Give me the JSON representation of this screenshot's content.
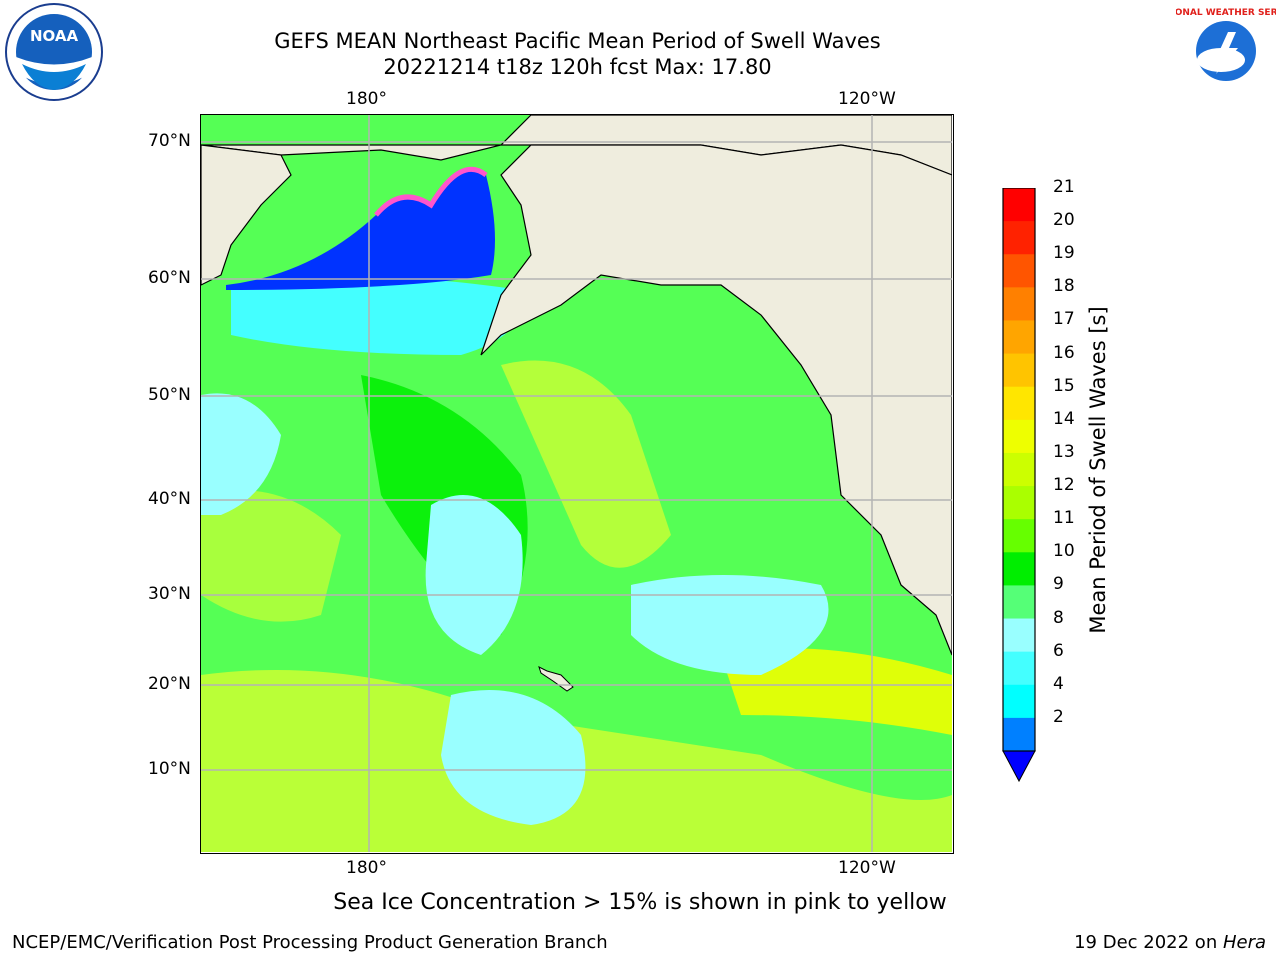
{
  "title_line1": "GEFS MEAN Northeast Pacific Mean Period of Swell Waves",
  "title_line2": "20221214 t18z 120h fcst   Max: 17.80",
  "logos": {
    "left": "NOAA",
    "right": "NATIONAL WEATHER SERVICE"
  },
  "axes": {
    "lon_top": [
      "180°",
      "120°W"
    ],
    "lon_bottom": [
      "180°",
      "120°W"
    ],
    "lat": [
      "70°N",
      "60°N",
      "50°N",
      "40°N",
      "30°N",
      "20°N",
      "10°N"
    ]
  },
  "colorbar": {
    "label": "Mean Period of Swell Waves [s]",
    "ticks": [
      "21",
      "20",
      "19",
      "18",
      "17",
      "16",
      "15",
      "14",
      "13",
      "12",
      "11",
      "10",
      "9",
      "8",
      "6",
      "4",
      "2"
    ],
    "colors": [
      "#ff0000",
      "#ff2200",
      "#ff5500",
      "#ff8000",
      "#ffa500",
      "#ffc400",
      "#ffe600",
      "#eeff00",
      "#ccff00",
      "#aaff00",
      "#66ff00",
      "#00ee00",
      "#55ff77",
      "#99ffff",
      "#44ffff",
      "#00ffff",
      "#0080ff"
    ],
    "extend_color": "#0000ff"
  },
  "map_colors": {
    "land": "#efedde",
    "grid": "#b4b4b4",
    "ice_blue": "#0033ff",
    "cyan_light": "#99ffff",
    "green": "#55ff55",
    "yellow_green": "#ccff33"
  },
  "note": "Sea Ice Concentration > 15% is shown in pink to yellow",
  "footer_left": "NCEP/EMC/Verification Post Processing Product Generation Branch",
  "footer_date": "19 Dec 2022 on ",
  "footer_host": "Hera"
}
